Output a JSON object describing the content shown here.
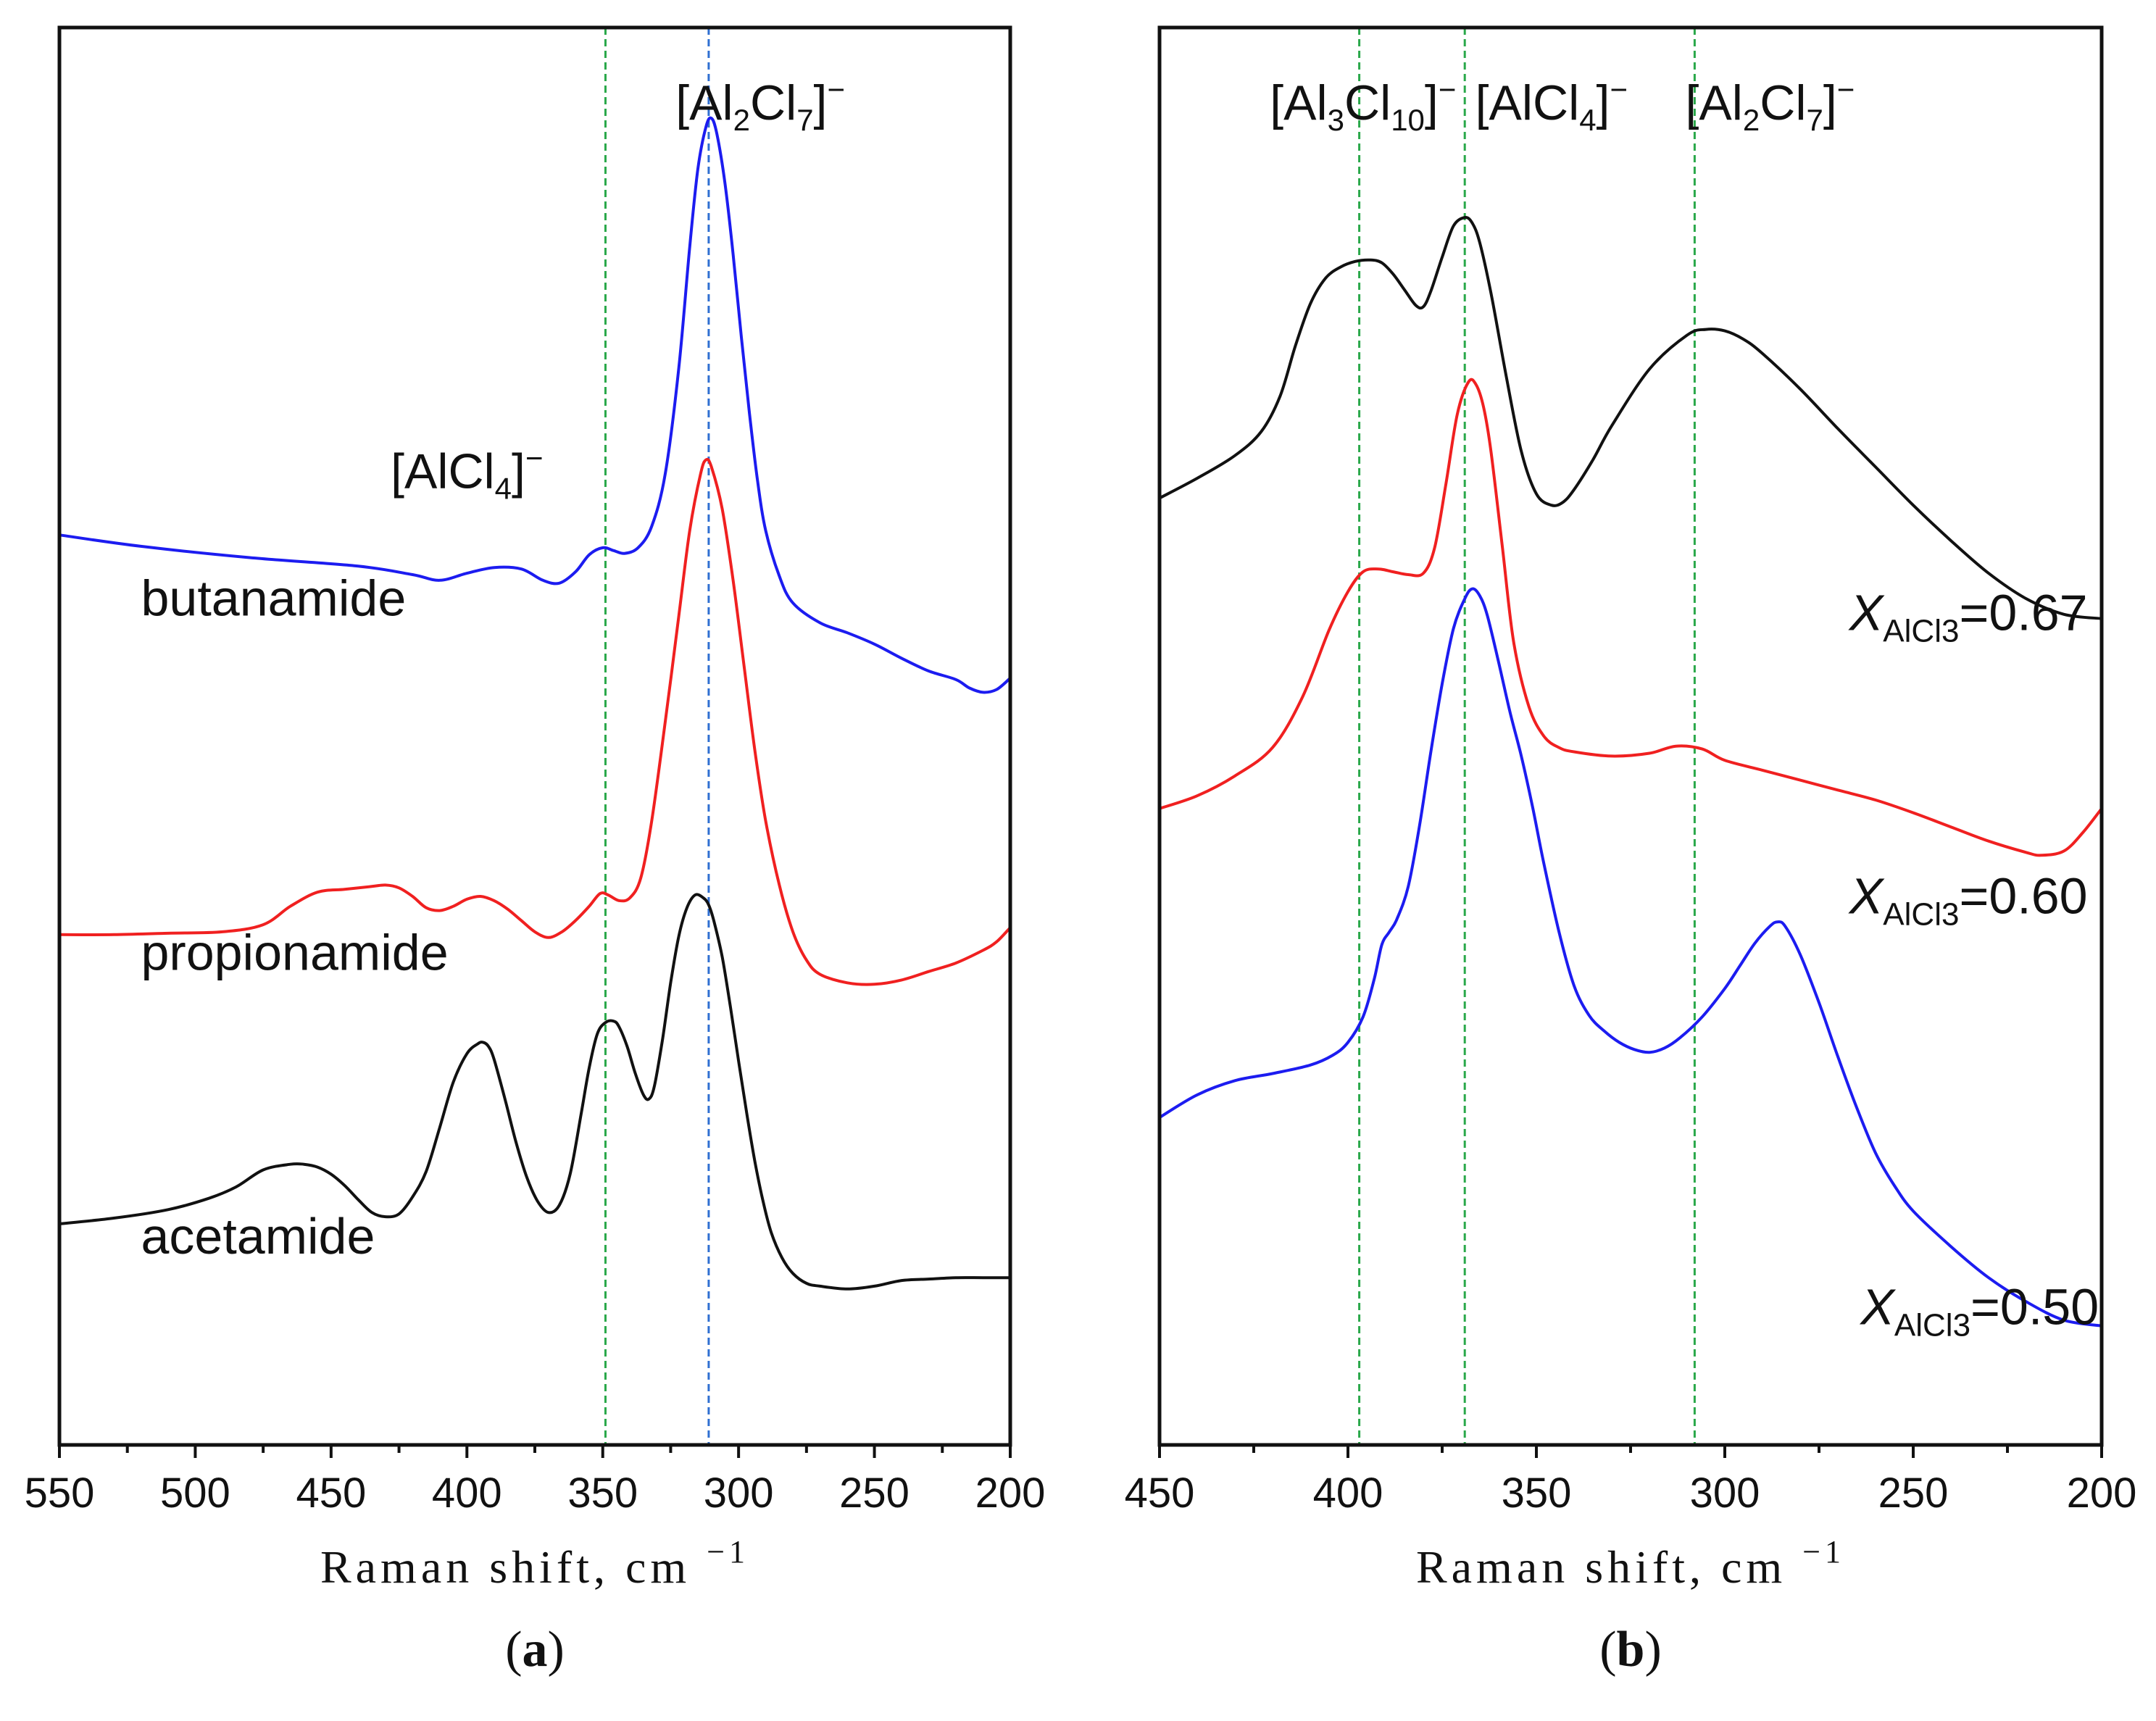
{
  "figure_labels": {
    "a": {
      "open": "(",
      "letter": "a",
      "close": ")"
    },
    "b": {
      "open": "(",
      "letter": "b",
      "close": ")"
    }
  },
  "chart_data": [
    {
      "id": "a",
      "type": "line",
      "panel_label": "(a)",
      "xlabel": "Raman shift, cm",
      "xlabel_sup": "−1",
      "xlim": [
        550,
        200
      ],
      "x_ticks": [
        550,
        500,
        450,
        400,
        350,
        300,
        250,
        200
      ],
      "x_tick_labels": [
        "550",
        "500",
        "450",
        "400",
        "350",
        "300",
        "250",
        "200"
      ],
      "y_units": "arbitrary (offset spectra)",
      "ylim": [
        0,
        100
      ],
      "reference_lines": [
        {
          "x": 349,
          "color": "#2aa84a",
          "label": "[AlCl4]−"
        },
        {
          "x": 311,
          "color": "#2f6fd1",
          "label": "[Al2Cl7]−"
        }
      ],
      "annotations": [
        {
          "name": "alcl4",
          "parts": [
            "[AlCl",
            "4",
            "]",
            "−"
          ],
          "at": [
            400,
            67.5
          ]
        },
        {
          "name": "al2cl7",
          "parts": [
            "[Al",
            "2",
            "Cl",
            "7",
            "]",
            "−"
          ],
          "at": [
            292,
            93.5
          ]
        }
      ],
      "series": [
        {
          "name": "butanamide",
          "color": "#1c1cf0",
          "label_at": [
            520,
            58.5
          ],
          "x": [
            550,
            520,
            480,
            440,
            420,
            410,
            400,
            390,
            380,
            372,
            366,
            360,
            355,
            350,
            346,
            342,
            337,
            332,
            327,
            322,
            318,
            315,
            312,
            310,
            308,
            305,
            302,
            299,
            296,
            293,
            290,
            285,
            280,
            270,
            260,
            250,
            240,
            230,
            220,
            215,
            210,
            205,
            200
          ],
          "y": [
            64.2,
            63.4,
            62.6,
            62.0,
            61.4,
            61.0,
            61.5,
            61.9,
            61.8,
            61.0,
            60.8,
            61.6,
            62.8,
            63.3,
            63.1,
            62.9,
            63.3,
            64.8,
            68.5,
            76.0,
            84.5,
            90.0,
            93.0,
            93.6,
            92.5,
            89.0,
            84.0,
            78.2,
            72.8,
            68.0,
            64.5,
            61.3,
            59.4,
            58.0,
            57.3,
            56.5,
            55.5,
            54.6,
            54.0,
            53.4,
            53.1,
            53.3,
            54.1
          ]
        },
        {
          "name": "propionamide",
          "color": "#f02020",
          "label_at": [
            520,
            33.5
          ],
          "x": [
            550,
            530,
            510,
            490,
            475,
            465,
            455,
            445,
            435,
            430,
            425,
            420,
            415,
            410,
            405,
            400,
            395,
            390,
            385,
            380,
            375,
            370,
            365,
            360,
            355,
            351,
            348,
            344,
            340,
            336,
            332,
            327,
            322,
            318,
            314,
            312,
            310,
            306,
            302,
            298,
            294,
            290,
            285,
            280,
            275,
            270,
            260,
            250,
            240,
            230,
            220,
            210,
            205,
            200
          ],
          "y": [
            36.0,
            36.0,
            36.1,
            36.2,
            36.7,
            38.0,
            39.0,
            39.2,
            39.4,
            39.5,
            39.3,
            38.7,
            37.9,
            37.7,
            38.0,
            38.5,
            38.7,
            38.4,
            37.8,
            37.0,
            36.2,
            35.8,
            36.2,
            37.0,
            38.0,
            38.9,
            38.8,
            38.4,
            38.6,
            40.0,
            44.0,
            51.0,
            58.5,
            64.5,
            68.5,
            69.5,
            69.0,
            66.0,
            61.0,
            55.0,
            49.0,
            44.0,
            39.5,
            36.2,
            34.2,
            33.2,
            32.6,
            32.5,
            32.8,
            33.4,
            34.0,
            34.9,
            35.5,
            36.5
          ]
        },
        {
          "name": "acetamide",
          "color": "#111111",
          "label_at": [
            520,
            13.5
          ],
          "x": [
            550,
            530,
            510,
            495,
            485,
            475,
            465,
            460,
            455,
            450,
            445,
            440,
            435,
            430,
            425,
            420,
            415,
            410,
            405,
            400,
            396,
            394,
            392,
            390,
            386,
            382,
            378,
            374,
            370,
            366,
            362,
            358,
            355,
            352,
            349,
            346,
            344,
            341,
            338,
            335,
            333,
            331,
            328,
            325,
            322,
            319,
            316,
            313,
            311,
            309,
            306,
            303,
            300,
            297,
            294,
            291,
            288,
            284,
            280,
            275,
            270,
            260,
            250,
            240,
            230,
            220,
            210,
            200
          ],
          "y": [
            15.6,
            16.0,
            16.6,
            17.4,
            18.2,
            19.4,
            19.8,
            19.8,
            19.6,
            19.1,
            18.3,
            17.3,
            16.4,
            16.1,
            16.3,
            17.5,
            19.3,
            22.4,
            25.6,
            27.6,
            28.3,
            28.4,
            28.1,
            27.2,
            24.4,
            21.4,
            18.9,
            17.2,
            16.4,
            16.9,
            19.1,
            23.3,
            26.6,
            29.0,
            29.8,
            29.9,
            29.5,
            28.1,
            26.2,
            24.7,
            24.4,
            25.3,
            28.6,
            32.6,
            35.9,
            37.9,
            38.8,
            38.6,
            38.1,
            36.9,
            34.4,
            30.9,
            27.1,
            23.4,
            20.0,
            17.2,
            15.0,
            13.2,
            12.1,
            11.4,
            11.2,
            11.0,
            11.2,
            11.6,
            11.7,
            11.8,
            11.8,
            11.8
          ]
        }
      ]
    },
    {
      "id": "b",
      "type": "line",
      "panel_label": "(b)",
      "xlabel": "Raman shift, cm",
      "xlabel_sup": "−1",
      "xlim": [
        450,
        200
      ],
      "x_ticks": [
        450,
        400,
        350,
        300,
        250,
        200
      ],
      "x_tick_labels": [
        "450",
        "400",
        "350",
        "300",
        "250",
        "200"
      ],
      "y_units": "arbitrary (offset spectra)",
      "ylim": [
        0,
        100
      ],
      "reference_lines": [
        {
          "x": 397,
          "color": "#2aa84a",
          "label": "[Al3Cl10]−"
        },
        {
          "x": 369,
          "color": "#2aa84a",
          "label": "[AlCl4]−"
        },
        {
          "x": 308,
          "color": "#2aa84a",
          "label": "[Al2Cl7]−"
        }
      ],
      "annotations": [
        {
          "name": "al3cl10",
          "parts": [
            "[Al",
            "3",
            "Cl",
            "10",
            "]",
            "−"
          ],
          "at": [
            396,
            93.5
          ]
        },
        {
          "name": "alcl4",
          "parts": [
            "[AlCl",
            "4",
            "]",
            "−"
          ],
          "at": [
            346,
            93.5
          ]
        },
        {
          "name": "al2cl7",
          "parts": [
            "[Al",
            "2",
            "Cl",
            "7",
            "]",
            "−"
          ],
          "at": [
            288,
            93.5
          ]
        }
      ],
      "series": [
        {
          "name": "X_AlCl3=0.67",
          "label_base": "X",
          "label_sub": "AlCl3",
          "label_value": "=0.67",
          "color": "#111111",
          "label_at": [
            267,
            57.5
          ],
          "x": [
            450,
            440,
            430,
            423,
            418,
            414,
            410,
            406,
            402,
            398,
            394,
            391,
            388,
            385,
            382,
            380,
            378,
            375,
            372,
            369,
            367,
            365,
            362,
            358,
            354,
            350,
            346,
            343,
            340,
            335,
            330,
            320,
            310,
            305,
            300,
            295,
            290,
            280,
            270,
            260,
            250,
            240,
            230,
            220,
            210,
            200
          ],
          "y": [
            66.8,
            68.2,
            69.8,
            71.5,
            74.0,
            77.5,
            80.5,
            82.3,
            83.1,
            83.5,
            83.6,
            83.4,
            82.6,
            81.5,
            80.4,
            80.3,
            81.4,
            83.8,
            86.0,
            86.6,
            86.2,
            84.8,
            81.2,
            75.4,
            70.1,
            67.1,
            66.3,
            66.5,
            67.4,
            69.5,
            71.9,
            75.9,
            78.3,
            78.7,
            78.6,
            78.0,
            77.0,
            74.5,
            71.7,
            69.0,
            66.3,
            63.8,
            61.5,
            59.7,
            58.6,
            58.3
          ]
        },
        {
          "name": "X_AlCl3=0.60",
          "label_base": "X",
          "label_sub": "AlCl3",
          "label_value": "=0.60",
          "color": "#f02020",
          "label_at": [
            267,
            37.5
          ],
          "x": [
            450,
            440,
            430,
            420,
            412,
            405,
            400,
            396,
            392,
            388,
            384,
            380,
            377,
            374,
            371,
            368,
            366,
            364,
            362,
            359,
            356,
            352,
            348,
            344,
            340,
            330,
            320,
            313,
            306,
            300,
            290,
            280,
            270,
            260,
            250,
            240,
            230,
            220,
            216,
            210,
            205,
            200
          ],
          "y": [
            44.9,
            45.8,
            47.2,
            49.2,
            52.8,
            57.5,
            60.2,
            61.6,
            61.8,
            61.6,
            61.4,
            61.5,
            63.3,
            67.8,
            72.7,
            75.0,
            74.8,
            73.2,
            70.0,
            63.3,
            56.6,
            52.1,
            50.0,
            49.2,
            48.9,
            48.6,
            48.8,
            49.3,
            49.1,
            48.3,
            47.6,
            46.9,
            46.2,
            45.5,
            44.6,
            43.6,
            42.6,
            41.8,
            41.6,
            41.9,
            43.2,
            44.9
          ]
        },
        {
          "name": "X_AlCl3=0.50",
          "label_base": "X",
          "label_sub": "AlCl3",
          "label_value": "=0.50",
          "color": "#1c1cf0",
          "label_at": [
            264,
            8.5
          ],
          "x": [
            450,
            440,
            430,
            420,
            410,
            404,
            400,
            396,
            393,
            391,
            389,
            387,
            384,
            381,
            378,
            375,
            372,
            369,
            367,
            365,
            363,
            360,
            357,
            354,
            351,
            348,
            344,
            340,
            336,
            332,
            328,
            324,
            320,
            316,
            312,
            306,
            300,
            296,
            292,
            288,
            286,
            284,
            280,
            275,
            270,
            265,
            260,
            255,
            250,
            240,
            230,
            220,
            210,
            200
          ],
          "y": [
            23.1,
            24.7,
            25.7,
            26.2,
            26.8,
            27.5,
            28.4,
            30.2,
            32.9,
            35.3,
            36.2,
            37.1,
            39.4,
            43.7,
            48.9,
            53.7,
            57.6,
            59.7,
            60.4,
            59.9,
            58.5,
            55.2,
            51.7,
            48.6,
            45.0,
            41.0,
            36.2,
            32.4,
            30.3,
            29.2,
            28.4,
            27.9,
            27.7,
            28.0,
            28.7,
            30.2,
            32.2,
            33.8,
            35.4,
            36.6,
            36.9,
            36.6,
            34.6,
            31.2,
            27.4,
            23.8,
            20.6,
            18.3,
            16.5,
            14.0,
            11.8,
            10.1,
            8.8,
            8.4
          ]
        }
      ]
    }
  ]
}
